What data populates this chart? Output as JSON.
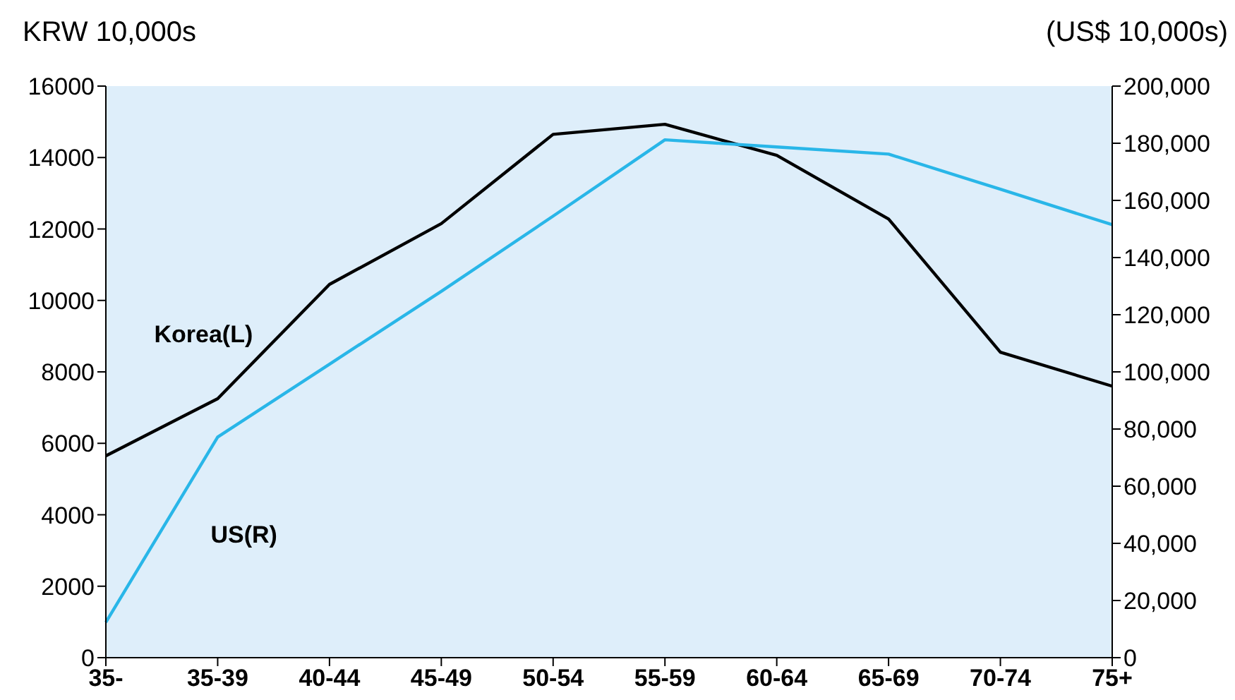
{
  "chart_data": {
    "type": "line",
    "ylabel": "KRW 10,000s",
    "y2label": "(US$ 10,000s)",
    "categories": [
      "35-",
      "35-39",
      "40-44",
      "45-49",
      "50-54",
      "55-59",
      "60-64",
      "65-69",
      "70-74",
      "75+"
    ],
    "series": [
      {
        "name": "Korea(L)",
        "color": "#000000",
        "values": [
          5650,
          7250,
          10450,
          12150,
          14650,
          14930,
          14060,
          12280,
          8550,
          7600
        ]
      },
      {
        "name": "US(R)",
        "color": "#29b6e8",
        "axis": "y2",
        "values": [
          12400,
          77200,
          102700,
          128200,
          154500,
          181200,
          178700,
          176200,
          163900,
          151500
        ]
      }
    ],
    "ylim": [
      0,
      16000
    ],
    "yticks": [
      0,
      2000,
      4000,
      6000,
      8000,
      10000,
      12000,
      14000,
      16000
    ],
    "y2lim": [
      0,
      200000
    ],
    "y2ticks": [
      {
        "value": 0,
        "label": "0"
      },
      {
        "value": 20000,
        "label": "20,000"
      },
      {
        "value": 40000,
        "label": "40,000"
      },
      {
        "value": 60000,
        "label": "60,000"
      },
      {
        "value": 80000,
        "label": "80,000"
      },
      {
        "value": 100000,
        "label": "100,000"
      },
      {
        "value": 120000,
        "label": "120,000"
      },
      {
        "value": 140000,
        "label": "140,000"
      },
      {
        "value": 160000,
        "label": "160,000"
      },
      {
        "value": 180000,
        "label": "180,000"
      },
      {
        "value": 200000,
        "label": "200,000"
      }
    ],
    "marker": "none",
    "line_style": "solid"
  }
}
